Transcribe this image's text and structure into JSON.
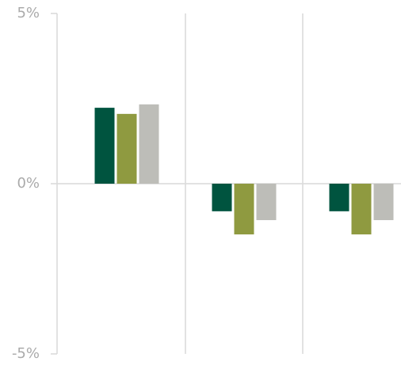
{
  "chart_data": {
    "type": "bar",
    "categories": [
      null,
      null,
      null
    ],
    "series": [
      {
        "color": "#00543f",
        "values": [
          2.23,
          -0.81,
          -0.81
        ]
      },
      {
        "color": "#8f9a40",
        "values": [
          2.05,
          -1.49,
          -1.49
        ]
      },
      {
        "color": "#bdbdb8",
        "values": [
          2.33,
          -1.07,
          -1.07
        ]
      }
    ],
    "ylim": [
      -5,
      5
    ],
    "yticks": [
      {
        "value": 5,
        "label": "5%"
      },
      {
        "value": 0,
        "label": "0%"
      },
      {
        "value": -5,
        "label": "-5%"
      }
    ]
  }
}
